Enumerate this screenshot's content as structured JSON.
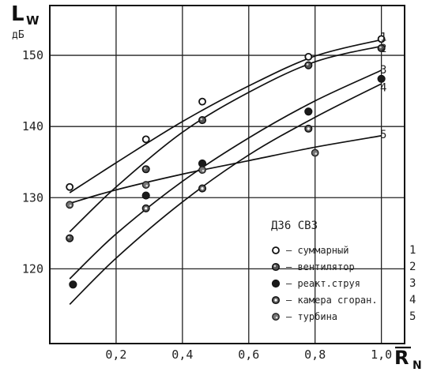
{
  "chart_data": {
    "type": "line",
    "y_axis_symbol": "L",
    "y_axis_subscript": "W",
    "y_axis_unit": "дБ",
    "x_axis_symbol": "R",
    "x_axis_subscript": "N",
    "xlim": [
      0.0,
      1.07
    ],
    "ylim": [
      109.5,
      157
    ],
    "x_ticks": [
      0.2,
      0.4,
      0.6,
      0.8,
      1.0
    ],
    "x_tick_labels": [
      "0,2",
      "0,4",
      "0,6",
      "0,8",
      "1,0"
    ],
    "y_ticks": [
      120,
      130,
      140,
      150
    ],
    "y_tick_labels": [
      "120",
      "130",
      "140",
      "150"
    ],
    "grid": true,
    "legend_title": "Д36  СВЗ",
    "legend_placement": "bottom-right inside plot",
    "series": [
      {
        "name": "суммарный",
        "number": "1",
        "marker": "open-circle",
        "points": [
          [
            0.06,
            131.5
          ],
          [
            0.29,
            138.2
          ],
          [
            0.46,
            143.5
          ],
          [
            0.78,
            149.8
          ],
          [
            1.0,
            152.3
          ]
        ],
        "curve": [
          [
            0.06,
            130.7
          ],
          [
            0.2,
            134.9
          ],
          [
            0.4,
            140.7
          ],
          [
            0.6,
            145.7
          ],
          [
            0.8,
            149.9
          ],
          [
            1.0,
            152.2
          ]
        ]
      },
      {
        "name": "вентилятор",
        "number": "2",
        "marker": "half-filled-circle",
        "points": [
          [
            0.06,
            124.3
          ],
          [
            0.29,
            134.0
          ],
          [
            0.46,
            140.9
          ],
          [
            0.78,
            148.6
          ],
          [
            1.0,
            151.0
          ]
        ],
        "curve": [
          [
            0.06,
            125.2
          ],
          [
            0.2,
            131.5
          ],
          [
            0.4,
            139.2
          ],
          [
            0.6,
            144.8
          ],
          [
            0.8,
            149.1
          ],
          [
            1.0,
            151.3
          ]
        ]
      },
      {
        "name": "реакт.струя",
        "number": "3",
        "marker": "filled-circle",
        "points": [
          [
            0.07,
            117.8
          ],
          [
            0.29,
            130.3
          ],
          [
            0.46,
            134.8
          ],
          [
            0.78,
            142.1
          ],
          [
            1.0,
            146.7
          ]
        ],
        "curve": [
          [
            0.06,
            118.6
          ],
          [
            0.2,
            124.9
          ],
          [
            0.4,
            132.3
          ],
          [
            0.6,
            138.4
          ],
          [
            0.8,
            143.6
          ],
          [
            1.0,
            147.9
          ]
        ]
      },
      {
        "name": "камера сгоран.",
        "number": "4",
        "marker": "dotted-circle",
        "points": [
          [
            0.29,
            128.5
          ],
          [
            0.46,
            131.3
          ],
          [
            0.78,
            139.7
          ]
        ],
        "curve": [
          [
            0.06,
            115.0
          ],
          [
            0.2,
            121.5
          ],
          [
            0.4,
            129.4
          ],
          [
            0.6,
            136.0
          ],
          [
            0.8,
            141.3
          ],
          [
            1.0,
            146.0
          ]
        ]
      },
      {
        "name": "турбина",
        "number": "5",
        "marker": "grey-dot-circle",
        "points": [
          [
            0.06,
            129.0
          ],
          [
            0.29,
            131.8
          ],
          [
            0.46,
            133.9
          ],
          [
            0.8,
            136.3
          ]
        ],
        "curve": [
          [
            0.06,
            129.2
          ],
          [
            0.2,
            131.1
          ],
          [
            0.4,
            133.3
          ],
          [
            0.6,
            135.2
          ],
          [
            0.8,
            137.1
          ],
          [
            1.0,
            138.7
          ]
        ]
      }
    ]
  }
}
